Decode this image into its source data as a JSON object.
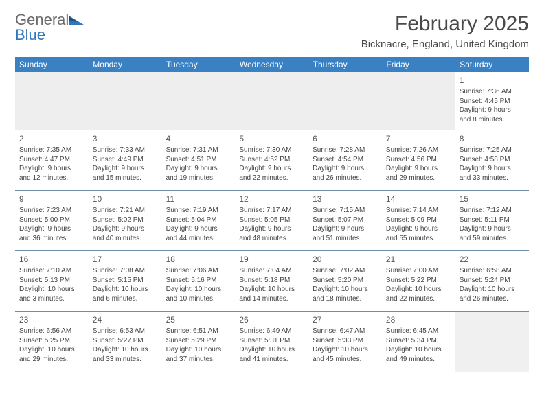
{
  "logo": {
    "word1": "General",
    "word2": "Blue"
  },
  "title": "February 2025",
  "location": "Bicknacre, England, United Kingdom",
  "header_bg": "#3a81c4",
  "header_fg": "#ffffff",
  "rule_color": "#6f8ea8",
  "blank_bg": "#eeeeee",
  "daynames": [
    "Sunday",
    "Monday",
    "Tuesday",
    "Wednesday",
    "Thursday",
    "Friday",
    "Saturday"
  ],
  "weeks": [
    [
      null,
      null,
      null,
      null,
      null,
      null,
      {
        "n": "1",
        "sunrise": "Sunrise: 7:36 AM",
        "sunset": "Sunset: 4:45 PM",
        "day1": "Daylight: 9 hours",
        "day2": "and 8 minutes."
      }
    ],
    [
      {
        "n": "2",
        "sunrise": "Sunrise: 7:35 AM",
        "sunset": "Sunset: 4:47 PM",
        "day1": "Daylight: 9 hours",
        "day2": "and 12 minutes."
      },
      {
        "n": "3",
        "sunrise": "Sunrise: 7:33 AM",
        "sunset": "Sunset: 4:49 PM",
        "day1": "Daylight: 9 hours",
        "day2": "and 15 minutes."
      },
      {
        "n": "4",
        "sunrise": "Sunrise: 7:31 AM",
        "sunset": "Sunset: 4:51 PM",
        "day1": "Daylight: 9 hours",
        "day2": "and 19 minutes."
      },
      {
        "n": "5",
        "sunrise": "Sunrise: 7:30 AM",
        "sunset": "Sunset: 4:52 PM",
        "day1": "Daylight: 9 hours",
        "day2": "and 22 minutes."
      },
      {
        "n": "6",
        "sunrise": "Sunrise: 7:28 AM",
        "sunset": "Sunset: 4:54 PM",
        "day1": "Daylight: 9 hours",
        "day2": "and 26 minutes."
      },
      {
        "n": "7",
        "sunrise": "Sunrise: 7:26 AM",
        "sunset": "Sunset: 4:56 PM",
        "day1": "Daylight: 9 hours",
        "day2": "and 29 minutes."
      },
      {
        "n": "8",
        "sunrise": "Sunrise: 7:25 AM",
        "sunset": "Sunset: 4:58 PM",
        "day1": "Daylight: 9 hours",
        "day2": "and 33 minutes."
      }
    ],
    [
      {
        "n": "9",
        "sunrise": "Sunrise: 7:23 AM",
        "sunset": "Sunset: 5:00 PM",
        "day1": "Daylight: 9 hours",
        "day2": "and 36 minutes."
      },
      {
        "n": "10",
        "sunrise": "Sunrise: 7:21 AM",
        "sunset": "Sunset: 5:02 PM",
        "day1": "Daylight: 9 hours",
        "day2": "and 40 minutes."
      },
      {
        "n": "11",
        "sunrise": "Sunrise: 7:19 AM",
        "sunset": "Sunset: 5:04 PM",
        "day1": "Daylight: 9 hours",
        "day2": "and 44 minutes."
      },
      {
        "n": "12",
        "sunrise": "Sunrise: 7:17 AM",
        "sunset": "Sunset: 5:05 PM",
        "day1": "Daylight: 9 hours",
        "day2": "and 48 minutes."
      },
      {
        "n": "13",
        "sunrise": "Sunrise: 7:15 AM",
        "sunset": "Sunset: 5:07 PM",
        "day1": "Daylight: 9 hours",
        "day2": "and 51 minutes."
      },
      {
        "n": "14",
        "sunrise": "Sunrise: 7:14 AM",
        "sunset": "Sunset: 5:09 PM",
        "day1": "Daylight: 9 hours",
        "day2": "and 55 minutes."
      },
      {
        "n": "15",
        "sunrise": "Sunrise: 7:12 AM",
        "sunset": "Sunset: 5:11 PM",
        "day1": "Daylight: 9 hours",
        "day2": "and 59 minutes."
      }
    ],
    [
      {
        "n": "16",
        "sunrise": "Sunrise: 7:10 AM",
        "sunset": "Sunset: 5:13 PM",
        "day1": "Daylight: 10 hours",
        "day2": "and 3 minutes."
      },
      {
        "n": "17",
        "sunrise": "Sunrise: 7:08 AM",
        "sunset": "Sunset: 5:15 PM",
        "day1": "Daylight: 10 hours",
        "day2": "and 6 minutes."
      },
      {
        "n": "18",
        "sunrise": "Sunrise: 7:06 AM",
        "sunset": "Sunset: 5:16 PM",
        "day1": "Daylight: 10 hours",
        "day2": "and 10 minutes."
      },
      {
        "n": "19",
        "sunrise": "Sunrise: 7:04 AM",
        "sunset": "Sunset: 5:18 PM",
        "day1": "Daylight: 10 hours",
        "day2": "and 14 minutes."
      },
      {
        "n": "20",
        "sunrise": "Sunrise: 7:02 AM",
        "sunset": "Sunset: 5:20 PM",
        "day1": "Daylight: 10 hours",
        "day2": "and 18 minutes."
      },
      {
        "n": "21",
        "sunrise": "Sunrise: 7:00 AM",
        "sunset": "Sunset: 5:22 PM",
        "day1": "Daylight: 10 hours",
        "day2": "and 22 minutes."
      },
      {
        "n": "22",
        "sunrise": "Sunrise: 6:58 AM",
        "sunset": "Sunset: 5:24 PM",
        "day1": "Daylight: 10 hours",
        "day2": "and 26 minutes."
      }
    ],
    [
      {
        "n": "23",
        "sunrise": "Sunrise: 6:56 AM",
        "sunset": "Sunset: 5:25 PM",
        "day1": "Daylight: 10 hours",
        "day2": "and 29 minutes."
      },
      {
        "n": "24",
        "sunrise": "Sunrise: 6:53 AM",
        "sunset": "Sunset: 5:27 PM",
        "day1": "Daylight: 10 hours",
        "day2": "and 33 minutes."
      },
      {
        "n": "25",
        "sunrise": "Sunrise: 6:51 AM",
        "sunset": "Sunset: 5:29 PM",
        "day1": "Daylight: 10 hours",
        "day2": "and 37 minutes."
      },
      {
        "n": "26",
        "sunrise": "Sunrise: 6:49 AM",
        "sunset": "Sunset: 5:31 PM",
        "day1": "Daylight: 10 hours",
        "day2": "and 41 minutes."
      },
      {
        "n": "27",
        "sunrise": "Sunrise: 6:47 AM",
        "sunset": "Sunset: 5:33 PM",
        "day1": "Daylight: 10 hours",
        "day2": "and 45 minutes."
      },
      {
        "n": "28",
        "sunrise": "Sunrise: 6:45 AM",
        "sunset": "Sunset: 5:34 PM",
        "day1": "Daylight: 10 hours",
        "day2": "and 49 minutes."
      },
      null
    ]
  ]
}
